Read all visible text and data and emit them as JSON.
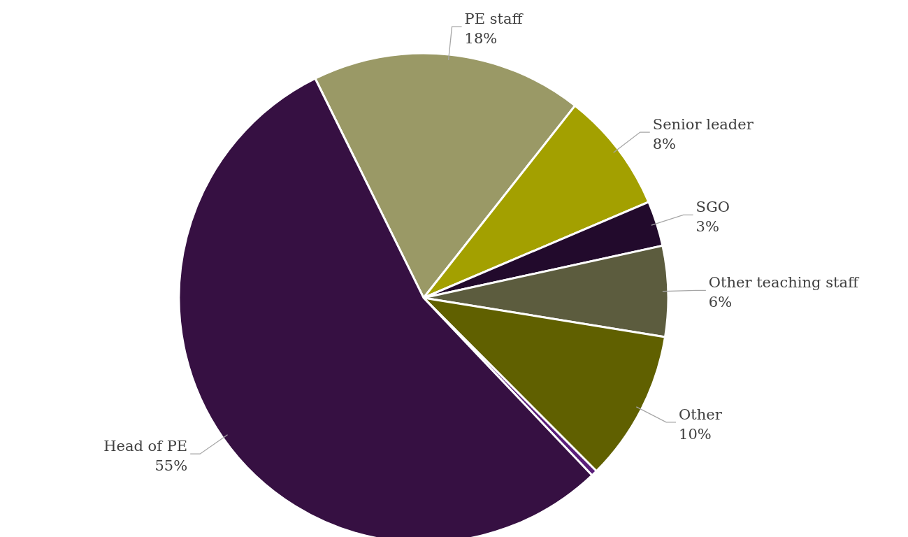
{
  "chart_data": {
    "type": "pie",
    "categories": [
      "PE staff",
      "Senior leader",
      "SGO",
      "Other teaching staff",
      "Other",
      null,
      "Head of PE"
    ],
    "values": [
      18,
      8,
      3,
      6,
      10,
      0.4,
      55
    ],
    "value_labels": [
      "18%",
      "8%",
      "3%",
      "6%",
      "10%",
      null,
      "55%"
    ],
    "colors": [
      "#9a9966",
      "#a3a000",
      "#220a2c",
      "#5c5c3e",
      "#606000",
      "#5a1f7a",
      "#361042"
    ]
  }
}
